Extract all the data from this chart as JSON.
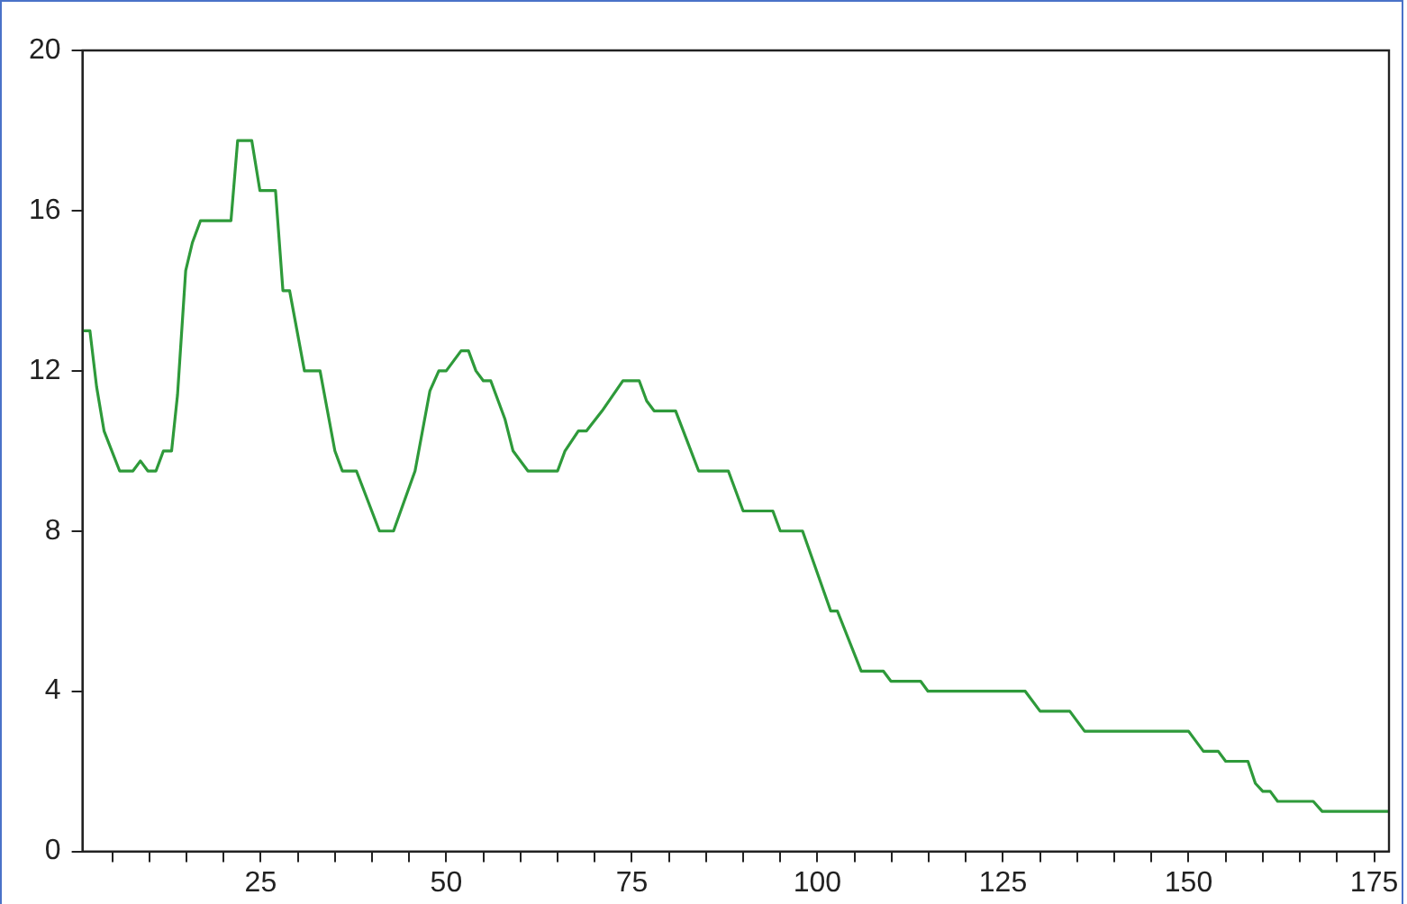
{
  "chart_data": {
    "type": "line",
    "color": "#2e9a3a",
    "x": [
      1,
      2,
      2.9,
      3.9,
      6,
      7.8,
      8.8,
      9.8,
      10.9,
      11.9,
      13,
      13.8,
      14.9,
      15.8,
      16.9,
      21,
      21.9,
      23.8,
      24.9,
      27,
      28,
      28.9,
      30.9,
      33,
      35,
      36,
      37.9,
      41,
      42.9,
      45.8,
      47.8,
      49,
      50,
      52,
      53,
      54,
      55,
      56,
      57.9,
      59,
      61,
      65,
      66,
      67.8,
      68.9,
      71,
      73.8,
      76,
      77,
      78,
      80.9,
      84,
      88,
      90,
      94,
      95,
      98,
      101.8,
      102.7,
      105.9,
      108.9,
      109.9,
      113.9,
      114.9,
      128,
      130,
      134,
      136,
      150,
      152,
      154,
      155,
      158,
      159,
      160,
      161,
      162,
      166.8,
      168,
      177
    ],
    "values": [
      13,
      13,
      11.6,
      10.5,
      9.5,
      9.5,
      9.75,
      9.5,
      9.5,
      10,
      10,
      11.4,
      14.5,
      15.2,
      15.75,
      15.75,
      17.75,
      17.75,
      16.5,
      16.5,
      14,
      14,
      12,
      12,
      10,
      9.5,
      9.5,
      8,
      8,
      9.5,
      11.5,
      12,
      12,
      12.5,
      12.5,
      12,
      11.75,
      11.75,
      10.8,
      10,
      9.5,
      9.5,
      10,
      10.5,
      10.5,
      11,
      11.75,
      11.75,
      11.25,
      11,
      11,
      9.5,
      9.5,
      8.5,
      8.5,
      8,
      8,
      6,
      6,
      4.5,
      4.5,
      4.25,
      4.25,
      4,
      4,
      3.5,
      3.5,
      3,
      3,
      2.5,
      2.5,
      2.25,
      2.25,
      1.7,
      1.5,
      1.5,
      1.25,
      1.25,
      1,
      1
    ],
    "xlim": [
      1,
      177
    ],
    "xticks": [
      {
        "value": 5,
        "label": null
      },
      {
        "value": 10,
        "label": null
      },
      {
        "value": 15,
        "label": null
      },
      {
        "value": 20,
        "label": null
      },
      25,
      {
        "value": 30,
        "label": null
      },
      {
        "value": 35,
        "label": null
      },
      {
        "value": 40,
        "label": null
      },
      {
        "value": 45,
        "label": null
      },
      50,
      {
        "value": 55,
        "label": null
      },
      {
        "value": 60,
        "label": null
      },
      {
        "value": 65,
        "label": null
      },
      {
        "value": 70,
        "label": null
      },
      75,
      {
        "value": 80,
        "label": null
      },
      {
        "value": 85,
        "label": null
      },
      {
        "value": 90,
        "label": null
      },
      {
        "value": 95,
        "label": null
      },
      100,
      {
        "value": 105,
        "label": null
      },
      {
        "value": 110,
        "label": null
      },
      {
        "value": 115,
        "label": null
      },
      {
        "value": 120,
        "label": null
      },
      125,
      {
        "value": 130,
        "label": null
      },
      {
        "value": 135,
        "label": null
      },
      {
        "value": 140,
        "label": null
      },
      {
        "value": 145,
        "label": null
      },
      150,
      {
        "value": 155,
        "label": null
      },
      {
        "value": 160,
        "label": null
      },
      {
        "value": 165,
        "label": null
      },
      {
        "value": 170,
        "label": null
      },
      175
    ],
    "ylim": [
      0,
      20
    ],
    "yticks": [
      0,
      4,
      8,
      12,
      16,
      20
    ],
    "grid": false,
    "legend": false,
    "marker": "none",
    "line_style": "solid"
  }
}
